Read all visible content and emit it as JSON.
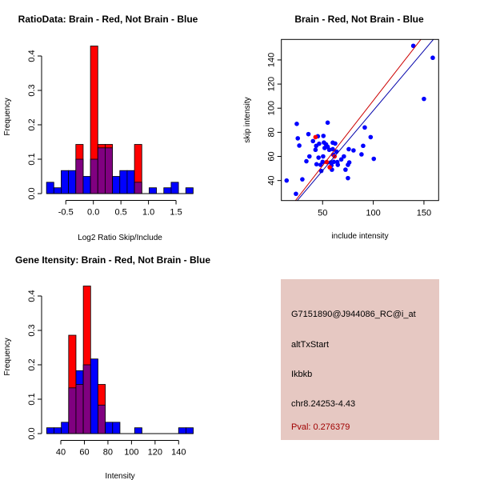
{
  "colors": {
    "red": "#ff0000",
    "blue": "#0000ff",
    "overlap": "#800080",
    "info_bg": "#e6c8c2",
    "pval": "#a00000",
    "red_line": "#cc0000",
    "blue_line": "#0000aa"
  },
  "chart_data": [
    {
      "type": "bar",
      "title": "RatioData: Brain - Red, Not Brain - Blue",
      "xlabel": "Log2 Ratio Skip/Include",
      "ylabel": "Frequency",
      "bin_start": -0.85,
      "bin_width": 0.133,
      "xticks": [
        -0.5,
        0.0,
        0.5,
        1.0,
        1.5
      ],
      "xtick_labels": [
        "-0.5",
        "0.0",
        "0.5",
        "1.0",
        "1.5"
      ],
      "yticks": [
        0.0,
        0.1,
        0.2,
        0.3,
        0.4
      ],
      "ytick_labels": [
        "0.0",
        "0.1",
        "0.2",
        "0.3",
        "0.4"
      ],
      "series": [
        {
          "name": "Brain",
          "color": "red",
          "values": [
            0,
            0,
            0,
            0,
            0.143,
            0,
            0.429,
            0.143,
            0.143,
            0,
            0,
            0,
            0.143,
            0,
            0,
            0,
            0,
            0,
            0,
            0
          ]
        },
        {
          "name": "Not Brain",
          "color": "blue",
          "values": [
            0.033,
            0.017,
            0.067,
            0.067,
            0.1,
            0.05,
            0.1,
            0.133,
            0.133,
            0.05,
            0.067,
            0.067,
            0.033,
            0,
            0.017,
            0,
            0.017,
            0.033,
            0,
            0.017
          ]
        }
      ]
    },
    {
      "type": "scatter",
      "title": "Brain - Red, Not Brain - Blue",
      "xlabel": "include intensity",
      "ylabel": "skip intensity",
      "xlim": [
        9.3,
        164.5
      ],
      "ylim": [
        23.4,
        157
      ],
      "xticks": [
        50,
        100,
        150
      ],
      "yticks": [
        40,
        60,
        80,
        100,
        120,
        140
      ],
      "series": [
        {
          "name": "Not Brain",
          "color": "blue",
          "points": [
            [
              14.5,
              40
            ],
            [
              23.7,
              29
            ],
            [
              24.5,
              87
            ],
            [
              25.5,
              75
            ],
            [
              27,
              69
            ],
            [
              30,
              41
            ],
            [
              34,
              56
            ],
            [
              36,
              78.5
            ],
            [
              37,
              60
            ],
            [
              40.5,
              72.7
            ],
            [
              43,
              65.5
            ],
            [
              43.7,
              68.8
            ],
            [
              45.3,
              76.7
            ],
            [
              44,
              53.5
            ],
            [
              46,
              59
            ],
            [
              46.6,
              70.5
            ],
            [
              48,
              53
            ],
            [
              48.7,
              48
            ],
            [
              50,
              55.5
            ],
            [
              50.5,
              60
            ],
            [
              50.8,
              77
            ],
            [
              51.3,
              71.5
            ],
            [
              52,
              67
            ],
            [
              53.4,
              70
            ],
            [
              55,
              88
            ],
            [
              55,
              68
            ],
            [
              56.6,
              65.5
            ],
            [
              58,
              55
            ],
            [
              58.7,
              52.6
            ],
            [
              59.2,
              49
            ],
            [
              60,
              71.4
            ],
            [
              60,
              66
            ],
            [
              60.5,
              61.5
            ],
            [
              61,
              55.5
            ],
            [
              62.4,
              70.7
            ],
            [
              63.7,
              64
            ],
            [
              64.5,
              55.3
            ],
            [
              65,
              53
            ],
            [
              68.4,
              57.5
            ],
            [
              71,
              60
            ],
            [
              72.6,
              49
            ],
            [
              75,
              53
            ],
            [
              75,
              42
            ],
            [
              75.8,
              66
            ],
            [
              76.3,
              55
            ],
            [
              80.5,
              65
            ],
            [
              88.4,
              61.7
            ],
            [
              90,
              68.8
            ],
            [
              91.6,
              84
            ],
            [
              97.4,
              76
            ],
            [
              100.5,
              58
            ],
            [
              139.5,
              151.7
            ],
            [
              150,
              107.7
            ],
            [
              158.7,
              141.8
            ]
          ]
        },
        {
          "name": "Brain",
          "color": "red",
          "points": [
            [
              43,
              76
            ],
            [
              54,
              55.3
            ],
            [
              57,
              51
            ],
            [
              61.8,
              60
            ]
          ]
        }
      ],
      "fit_lines": [
        {
          "name": "Brain fit",
          "color": "red_line",
          "slope": 1.08,
          "intercept": -1.7
        },
        {
          "name": "Not Brain fit",
          "color": "blue_line",
          "slope": 0.995,
          "intercept": -1.5
        }
      ]
    },
    {
      "type": "bar",
      "title": "Gene Itensity: Brain - Red, Not Brain - Blue",
      "xlabel": "Intensity",
      "ylabel": "Frequency",
      "bin_start": 28,
      "bin_width": 6.22,
      "xticks": [
        40,
        60,
        80,
        100,
        120,
        140
      ],
      "xtick_labels": [
        "40",
        "60",
        "80",
        "100",
        "120",
        "140"
      ],
      "yticks": [
        0.0,
        0.1,
        0.2,
        0.3,
        0.4
      ],
      "ytick_labels": [
        "0.0",
        "0.1",
        "0.2",
        "0.3",
        "0.4"
      ],
      "series": [
        {
          "name": "Brain",
          "color": "red",
          "values": [
            0,
            0,
            0,
            0.286,
            0.143,
            0.429,
            0,
            0.143,
            0,
            0,
            0,
            0,
            0,
            0,
            0,
            0,
            0,
            0,
            0,
            0
          ]
        },
        {
          "name": "Not Brain",
          "color": "blue",
          "values": [
            0.017,
            0.017,
            0.033,
            0.133,
            0.183,
            0.2,
            0.217,
            0.083,
            0.033,
            0.033,
            0,
            0,
            0.017,
            0,
            0,
            0,
            0,
            0,
            0.017,
            0.017
          ]
        }
      ]
    }
  ],
  "info": {
    "probe": "G7151890@J944086_RC@i_at",
    "event": "altTxStart",
    "gene": "Ikbkb",
    "location": "chr8.24253-4.43",
    "pval": "Pval: 0.276379"
  }
}
